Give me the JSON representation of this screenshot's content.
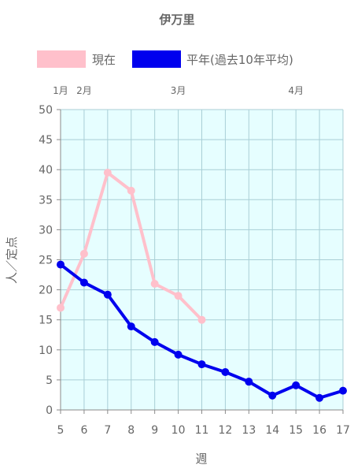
{
  "chart_data": {
    "type": "line",
    "title": "伊万里",
    "xlabel": "週",
    "ylabel": "人／定点",
    "x": [
      5,
      6,
      7,
      8,
      9,
      10,
      11,
      12,
      13,
      14,
      15,
      16,
      17
    ],
    "xlim": [
      5,
      17
    ],
    "ylim": [
      0,
      50
    ],
    "yticks": [
      0,
      5,
      10,
      15,
      20,
      25,
      30,
      35,
      40,
      45,
      50
    ],
    "grid": true,
    "legend_position": "top",
    "plot_background": "#e6feff",
    "month_labels": [
      {
        "label": "1月",
        "x": 5
      },
      {
        "label": "2月",
        "x": 6
      },
      {
        "label": "3月",
        "x": 10
      },
      {
        "label": "4月",
        "x": 15
      }
    ],
    "series": [
      {
        "name": "現在",
        "color": "#ffc0cb",
        "values": [
          17,
          26,
          39.5,
          36.5,
          21,
          19,
          15,
          null,
          null,
          null,
          null,
          null,
          null
        ]
      },
      {
        "name": "平年(過去10年平均)",
        "color": "#0000ee",
        "values": [
          24.2,
          21.2,
          19.2,
          13.9,
          11.3,
          9.2,
          7.6,
          6.3,
          4.7,
          2.4,
          4.1,
          2.0,
          3.2
        ]
      }
    ]
  }
}
